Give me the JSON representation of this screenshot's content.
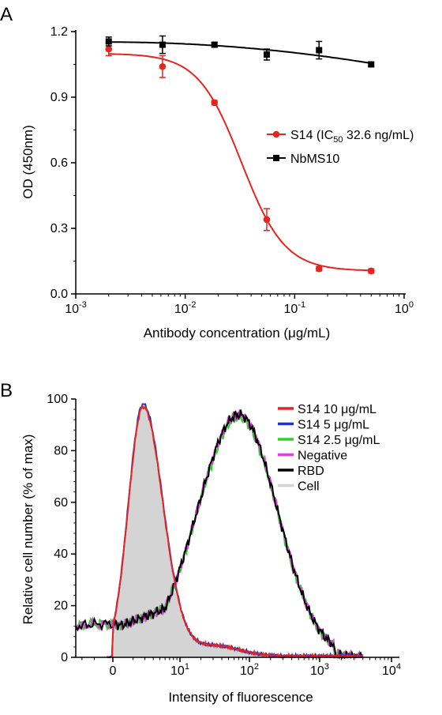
{
  "chart_data": [
    {
      "type": "line",
      "panel_label": "A",
      "xlabel": "Antibody concentration (μg/mL)",
      "ylabel": "OD (450nm)",
      "xscale": "log",
      "xlim": [
        0.001,
        1
      ],
      "ylim": [
        0,
        1.2
      ],
      "y_ticks": [
        "0.0",
        "0.3",
        "0.6",
        "0.9",
        "1.2"
      ],
      "x_ticks": [
        {
          "base": "10",
          "exp": "-3"
        },
        {
          "base": "10",
          "exp": "-2"
        },
        {
          "base": "10",
          "exp": "-1"
        },
        {
          "base": "10",
          "exp": "0"
        }
      ],
      "legend_position": "right",
      "series": [
        {
          "name": "S14 (IC50 32.6 ng/mL)",
          "legend": {
            "main": "S14 (IC",
            "sub": "50",
            "rest": " 32.6 ng/mL)"
          },
          "color": "#e8241f",
          "marker": "circle",
          "x": [
            0.002,
            0.0062,
            0.0185,
            0.0556,
            0.167,
            0.5
          ],
          "y": [
            1.12,
            1.04,
            0.875,
            0.34,
            0.115,
            0.105
          ],
          "err": [
            0.03,
            0.05,
            0.01,
            0.05,
            0.01,
            0.01
          ],
          "fit": {
            "top": 1.1,
            "bottom": 0.105,
            "ic50": 0.0326,
            "hill": 2.2
          }
        },
        {
          "name": "NbMS10",
          "legend": {
            "main": "NbMS10",
            "sub": "",
            "rest": ""
          },
          "color": "#000000",
          "marker": "square",
          "x": [
            0.002,
            0.0062,
            0.0185,
            0.0556,
            0.167,
            0.5
          ],
          "y": [
            1.155,
            1.14,
            1.14,
            1.095,
            1.115,
            1.05
          ],
          "err": [
            0.02,
            0.04,
            0.01,
            0.025,
            0.04,
            0.01
          ],
          "fit": {
            "start": 1.152,
            "end": 1.055
          }
        }
      ]
    },
    {
      "type": "area",
      "panel_label": "B",
      "xlabel": "Intensity of fluorescence",
      "ylabel": "Relative cell number (% of max)",
      "xscale": "biexponential",
      "ylim": [
        0,
        100
      ],
      "y_ticks": [
        "0",
        "20",
        "40",
        "60",
        "80",
        "100"
      ],
      "x_ticks": [
        {
          "base": "0",
          "exp": ""
        },
        {
          "base": "10",
          "exp": "1"
        },
        {
          "base": "10",
          "exp": "2"
        },
        {
          "base": "10",
          "exp": "3"
        },
        {
          "base": "10",
          "exp": "4"
        }
      ],
      "legend_position": "top-right",
      "series": [
        {
          "name": "S14 10 μg/mL",
          "color": "#e8241f",
          "peak_x_log": 0.45,
          "peak_y": 97
        },
        {
          "name": "S14 5 μg/mL",
          "color": "#1f2fe0",
          "peak_x_log": 0.45,
          "peak_y": 98
        },
        {
          "name": "S14 2.5 μg/mL",
          "color": "#2ed12e",
          "peak_x_log": 1.85,
          "peak_y": 93
        },
        {
          "name": "Negative",
          "color": "#e040e0",
          "peak_x_log": 1.85,
          "peak_y": 94
        },
        {
          "name": "RBD",
          "color": "#000000",
          "peak_x_log": 1.85,
          "peak_y": 94
        },
        {
          "name": "Cell",
          "color": "#d4d4d4",
          "peak_x_log": 0.45,
          "peak_y": 97
        }
      ]
    }
  ]
}
